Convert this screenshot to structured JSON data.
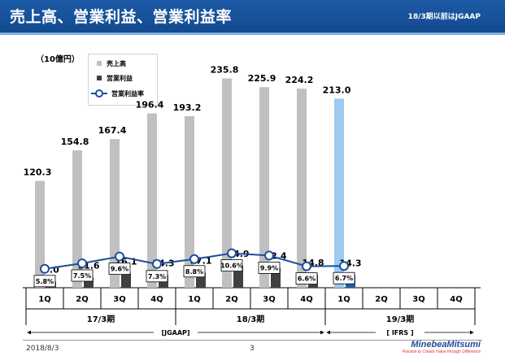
{
  "header": {
    "title": "売上高、営業利益、営業利益率",
    "note": "18/3期以前はJGAAP"
  },
  "unit_label": "（10億円）",
  "legend": {
    "sales": "売上高",
    "op_income": "営業利益",
    "op_margin": "営業利益率"
  },
  "chart_data": {
    "type": "bar",
    "categories": [
      "1Q",
      "2Q",
      "3Q",
      "4Q",
      "1Q",
      "2Q",
      "3Q",
      "4Q",
      "1Q",
      "2Q",
      "3Q",
      "4Q"
    ],
    "fiscal_years": [
      {
        "label": "17/3期",
        "start": 0,
        "end": 3
      },
      {
        "label": "18/3期",
        "start": 4,
        "end": 7
      },
      {
        "label": "19/3期",
        "start": 8,
        "end": 11
      }
    ],
    "accounting_standards": [
      {
        "label": "[JGAAP]",
        "start": 0,
        "end": 7
      },
      {
        "label": "[ IFRS ]",
        "start": 8,
        "end": 11
      }
    ],
    "series": [
      {
        "name": "売上高",
        "type": "bar",
        "values": [
          120.3,
          154.8,
          167.4,
          196.4,
          193.2,
          235.8,
          225.9,
          224.2,
          213.0,
          null,
          null,
          null
        ],
        "labels": [
          "120.3",
          "154.8",
          "167.4",
          "196.4",
          "193.2",
          "235.8",
          "225.9",
          "224.2",
          "213.0",
          "",
          "",
          ""
        ]
      },
      {
        "name": "営業利益",
        "type": "bar",
        "values": [
          7.0,
          11.6,
          16.1,
          14.3,
          17.1,
          24.9,
          22.4,
          14.8,
          14.3,
          null,
          null,
          null
        ],
        "labels": [
          "7.0",
          "11.6",
          "16.1",
          "14.3",
          "17.1",
          "24.9",
          "22.4",
          "14.8",
          "14.3",
          "",
          "",
          ""
        ]
      },
      {
        "name": "営業利益率",
        "type": "line",
        "values": [
          5.8,
          7.5,
          9.6,
          7.3,
          8.8,
          10.6,
          9.9,
          6.6,
          6.7,
          null,
          null,
          null
        ],
        "labels": [
          "5.8%",
          "7.5%",
          "9.6%",
          "7.3%",
          "8.8%",
          "10.6%",
          "9.9%",
          "6.6%",
          "6.7%",
          "",
          "",
          ""
        ]
      }
    ],
    "colors": {
      "sales": "#c0c0c0",
      "op_income": "#404040",
      "sales_highlight": "#9ccaf0",
      "op_income_highlight": "#1f5ea8",
      "margin_line": "#1f4e9c"
    },
    "highlight_index": 8,
    "ylim": [
      0,
      260
    ],
    "margin_ylim": [
      0,
      30
    ],
    "grid": false,
    "legend_position": "top-left"
  },
  "footer": {
    "date": "2018/8/3",
    "page": "3",
    "logo_name": "MinebeaMitsumi",
    "logo_tagline": "Passion to Create Value through Difference"
  }
}
